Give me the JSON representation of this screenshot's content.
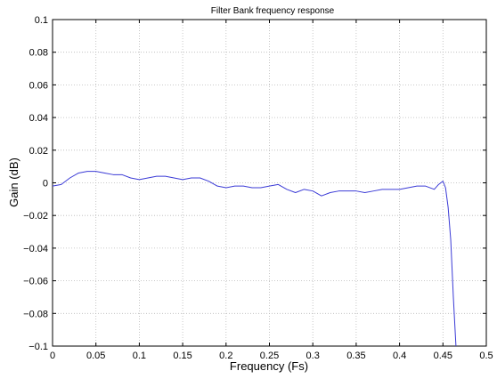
{
  "chart_data": {
    "type": "line",
    "title": "Filter Bank frequency response",
    "xlabel": "Frequency (Fs)",
    "ylabel": "Gain (dB)",
    "xlim": [
      0,
      0.5
    ],
    "ylim": [
      -0.1,
      0.1
    ],
    "x_ticks": [
      0,
      0.05,
      0.1,
      0.15,
      0.2,
      0.25,
      0.3,
      0.35,
      0.4,
      0.45,
      0.5
    ],
    "x_tick_labels": [
      "0",
      "0.05",
      "0.1",
      "0.15",
      "0.2",
      "0.25",
      "0.3",
      "0.35",
      "0.4",
      "0.45",
      "0.5"
    ],
    "y_ticks": [
      -0.1,
      -0.08,
      -0.06,
      -0.04,
      -0.02,
      0,
      0.02,
      0.04,
      0.06,
      0.08,
      0.1
    ],
    "y_tick_labels": [
      "−0.1",
      "−0.08",
      "−0.06",
      "−0.04",
      "−0.02",
      "0",
      "0.02",
      "0.04",
      "0.06",
      "0.08",
      "0.1"
    ],
    "grid": true,
    "line_color": "#3b3bd6",
    "series": [
      {
        "x": [
          0,
          0.01,
          0.02,
          0.03,
          0.04,
          0.05,
          0.06,
          0.07,
          0.08,
          0.09,
          0.1,
          0.11,
          0.12,
          0.13,
          0.14,
          0.15,
          0.16,
          0.17,
          0.18,
          0.19,
          0.2,
          0.21,
          0.22,
          0.23,
          0.24,
          0.25,
          0.26,
          0.27,
          0.28,
          0.29,
          0.3,
          0.31,
          0.32,
          0.33,
          0.34,
          0.35,
          0.36,
          0.37,
          0.38,
          0.39,
          0.4,
          0.41,
          0.42,
          0.43,
          0.44,
          0.445,
          0.45,
          0.453,
          0.456,
          0.459,
          0.462,
          0.465,
          0.467
        ],
        "y": [
          -0.002,
          -0.001,
          0.003,
          0.006,
          0.007,
          0.007,
          0.006,
          0.005,
          0.005,
          0.003,
          0.002,
          0.003,
          0.004,
          0.004,
          0.003,
          0.002,
          0.003,
          0.003,
          0.001,
          -0.002,
          -0.003,
          -0.002,
          -0.002,
          -0.003,
          -0.003,
          -0.002,
          -0.001,
          -0.004,
          -0.006,
          -0.004,
          -0.005,
          -0.008,
          -0.006,
          -0.005,
          -0.005,
          -0.005,
          -0.006,
          -0.005,
          -0.004,
          -0.004,
          -0.004,
          -0.003,
          -0.002,
          -0.002,
          -0.004,
          -0.001,
          0.001,
          -0.003,
          -0.015,
          -0.035,
          -0.07,
          -0.1,
          -0.12
        ]
      }
    ]
  }
}
